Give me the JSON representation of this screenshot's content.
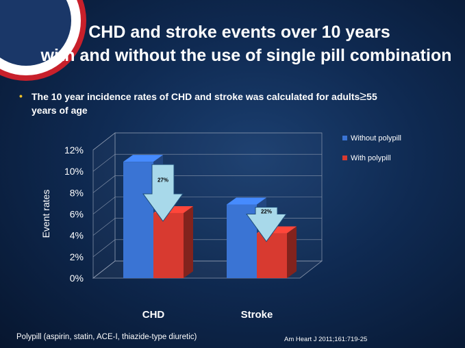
{
  "slide": {
    "title_line1": "CHD and stroke events over 10 years",
    "title_line2": "with and without the use of single pill combination",
    "bullet_prefix": "The 10 year incidence rates of CHD and stroke was calculated for adults",
    "bullet_symbol": "≥",
    "bullet_value": "55",
    "bullet_suffix": "years of age",
    "footnote": "Polypill (aspirin, statin, ACE-I, thiazide-type diuretic)",
    "reference": "Am Heart J 2011;161:719-25"
  },
  "chart_data": {
    "type": "bar",
    "title": "",
    "categories": [
      "CHD",
      "Stroke"
    ],
    "series": [
      {
        "name": "Without polypill",
        "values": [
          10.9,
          6.9
        ],
        "color": "#3a74d4"
      },
      {
        "name": "With polypill",
        "values": [
          6.1,
          4.2
        ],
        "color": "#d83a30"
      }
    ],
    "ylabel": "Event rates",
    "xlabel": "",
    "ylim": [
      0,
      12
    ],
    "yticks": [
      "0%",
      "2%",
      "4%",
      "6%",
      "8%",
      "10%",
      "12%"
    ],
    "annotations": [
      "27%",
      "22%"
    ],
    "legend": "right",
    "grid": true
  }
}
